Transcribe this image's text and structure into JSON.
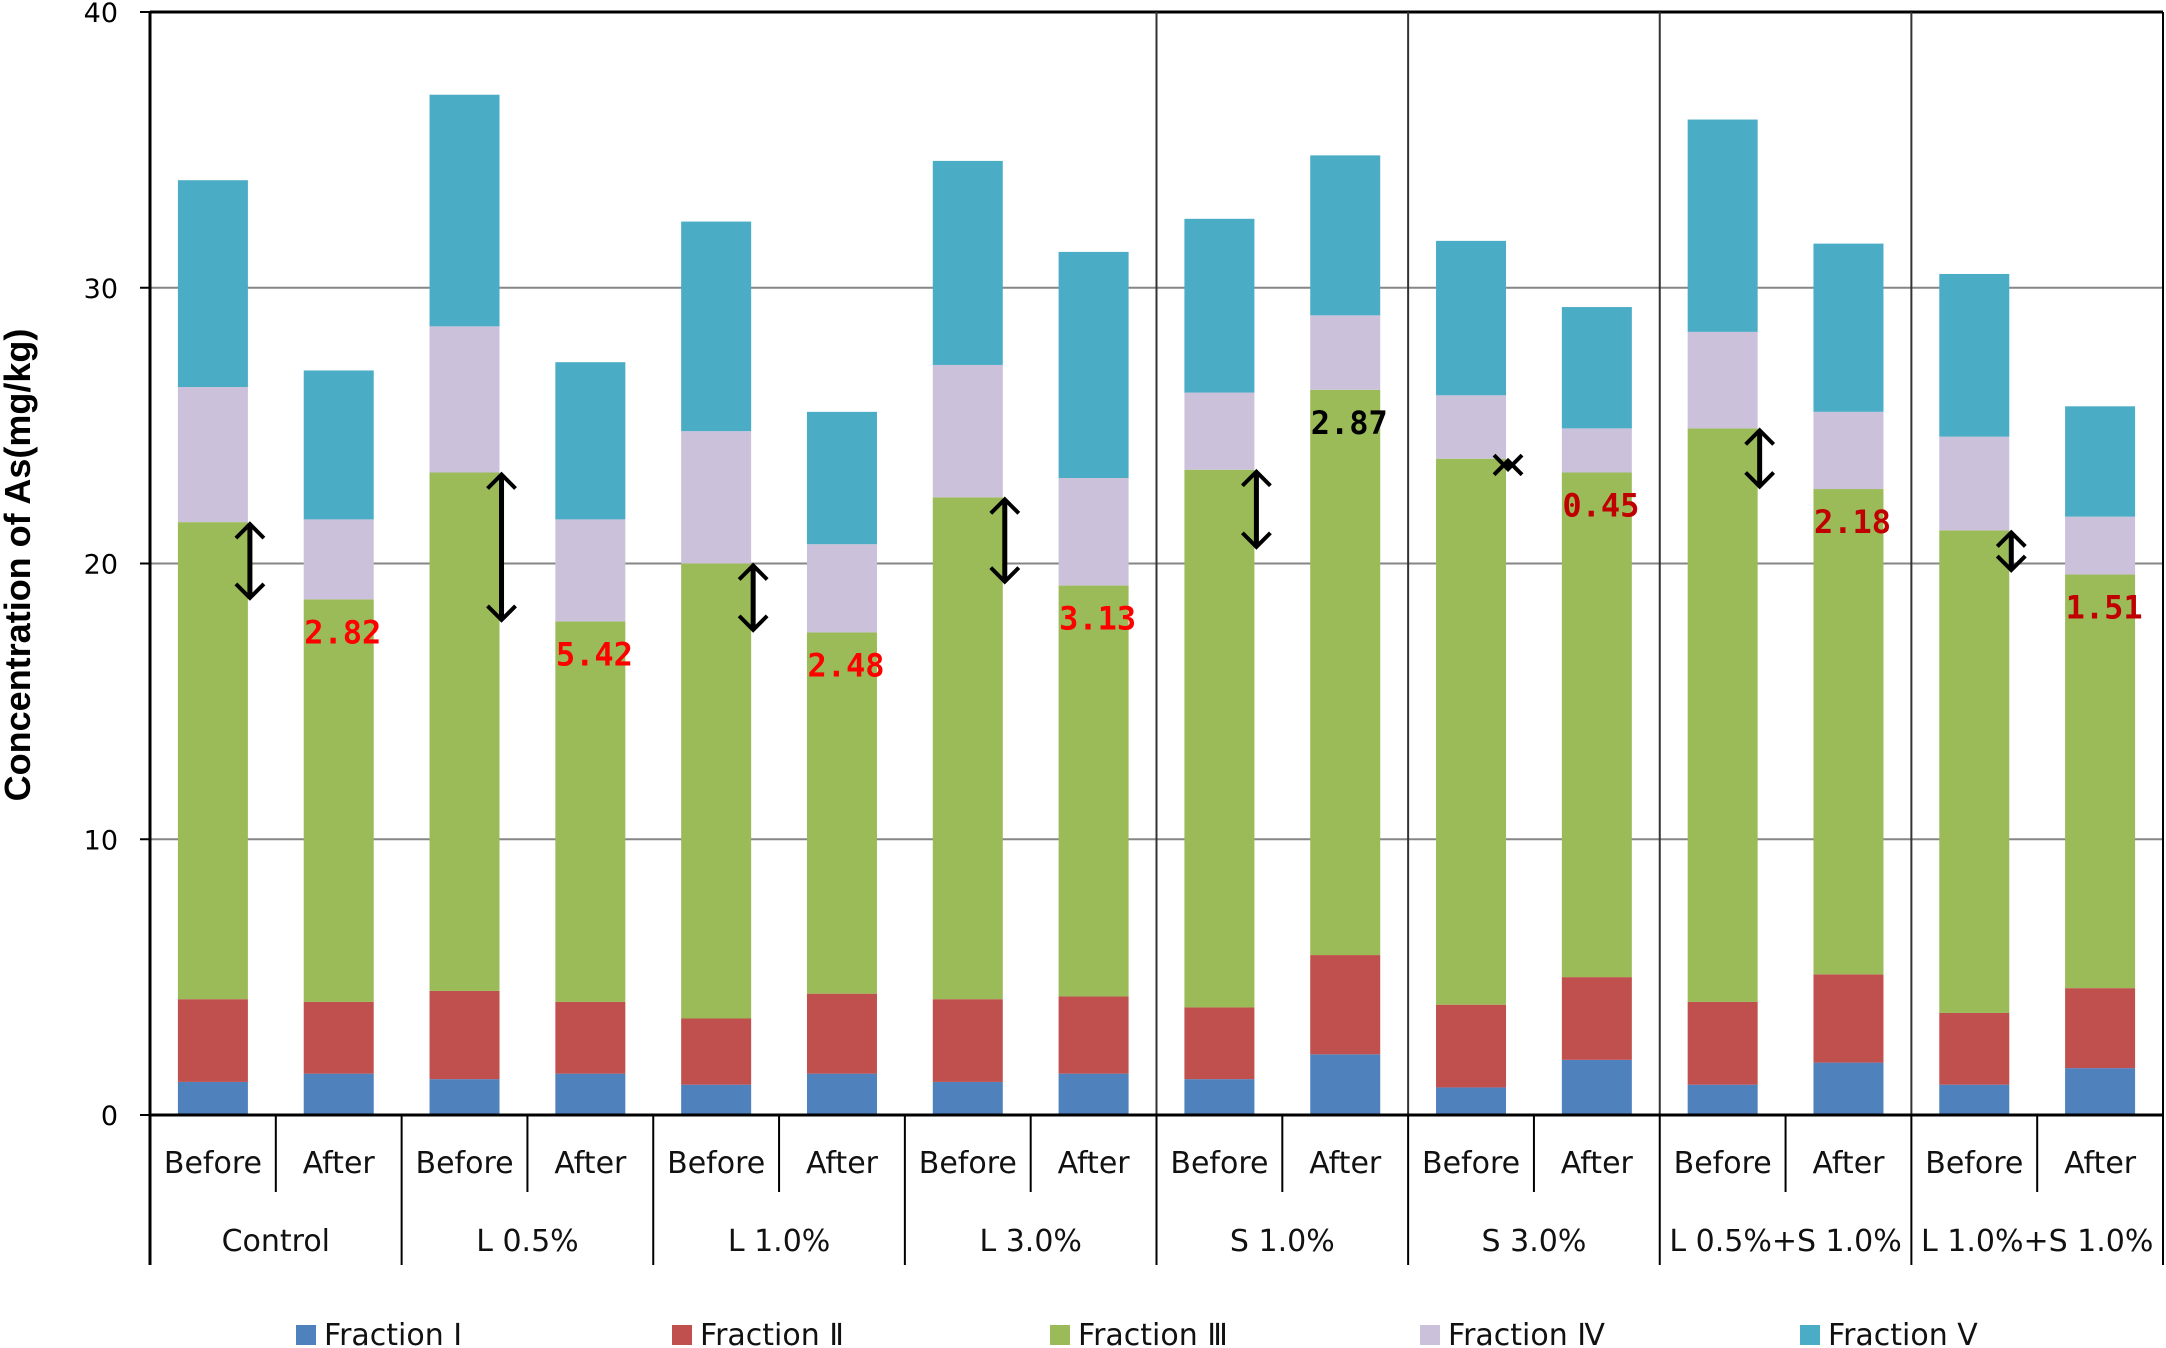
{
  "chart_data": {
    "type": "bar",
    "stacked": true,
    "title": "",
    "xlabel": "",
    "ylabel": "Concentration of As(mg/kg)",
    "ylim": [
      0,
      40
    ],
    "yticks": [
      0,
      10,
      20,
      30,
      40
    ],
    "grid": true,
    "legend_position": "bottom",
    "groups": [
      "Control",
      "L 0.5%",
      "L 1.0%",
      "L 3.0%",
      "S 1.0%",
      "S 3.0%",
      "L 0.5%+S 1.0%",
      "L 1.0%+S 1.0%"
    ],
    "subcategories": [
      "Before",
      "After"
    ],
    "categories": [
      "Control Before",
      "Control After",
      "L 0.5% Before",
      "L 0.5% After",
      "L 1.0% Before",
      "L 1.0% After",
      "L 3.0% Before",
      "L 3.0% After",
      "S 1.0% Before",
      "S 1.0% After",
      "S 3.0% Before",
      "S 3.0% After",
      "L 0.5%+S 1.0% Before",
      "L 0.5%+S 1.0% After",
      "L 1.0%+S 1.0% Before",
      "L 1.0%+S 1.0% After"
    ],
    "series": [
      {
        "name": "Fraction Ⅰ",
        "color": "#4F81BD",
        "values": [
          1.2,
          1.5,
          1.3,
          1.5,
          1.1,
          1.5,
          1.2,
          1.5,
          1.3,
          2.2,
          1.0,
          2.0,
          1.1,
          1.9,
          1.1,
          1.7
        ]
      },
      {
        "name": "Fraction Ⅱ",
        "color": "#C0504D",
        "values": [
          3.0,
          2.6,
          3.2,
          2.6,
          2.4,
          2.9,
          3.0,
          2.8,
          2.6,
          3.6,
          3.0,
          3.0,
          3.0,
          3.2,
          2.6,
          2.9
        ]
      },
      {
        "name": "Fraction Ⅲ",
        "color": "#9BBB59",
        "values": [
          17.3,
          14.6,
          18.8,
          13.8,
          16.5,
          13.1,
          18.2,
          14.9,
          19.5,
          20.5,
          19.8,
          18.3,
          20.8,
          17.6,
          17.5,
          15.0
        ]
      },
      {
        "name": "Fraction Ⅳ",
        "color": "#CCC1DA",
        "values": [
          4.9,
          2.9,
          5.3,
          3.7,
          4.8,
          3.2,
          4.8,
          3.9,
          2.8,
          2.7,
          2.3,
          1.6,
          3.5,
          2.8,
          3.4,
          2.1
        ]
      },
      {
        "name": "Fraction Ⅴ",
        "color": "#4BACC6",
        "values": [
          7.5,
          5.4,
          8.4,
          5.7,
          7.6,
          4.8,
          7.4,
          8.2,
          6.3,
          5.8,
          5.6,
          4.4,
          7.7,
          6.1,
          5.9,
          4.0
        ]
      }
    ],
    "annotations": [
      {
        "group": "Control",
        "change": "2.82",
        "color": "#FF0000"
      },
      {
        "group": "L 0.5%",
        "change": "5.42",
        "color": "#FF0000"
      },
      {
        "group": "L 1.0%",
        "change": "2.48",
        "color": "#FF0000"
      },
      {
        "group": "L 3.0%",
        "change": "3.13",
        "color": "#FF0000"
      },
      {
        "group": "S 1.0%",
        "change": "2.87",
        "color": "#000000"
      },
      {
        "group": "S 3.0%",
        "change": "0.45",
        "color": "#C00000"
      },
      {
        "group": "L 0.5%+S 1.0%",
        "change": "2.18",
        "color": "#C00000"
      },
      {
        "group": "L 1.0%+S 1.0%",
        "change": "1.51",
        "color": "#C00000"
      }
    ]
  }
}
